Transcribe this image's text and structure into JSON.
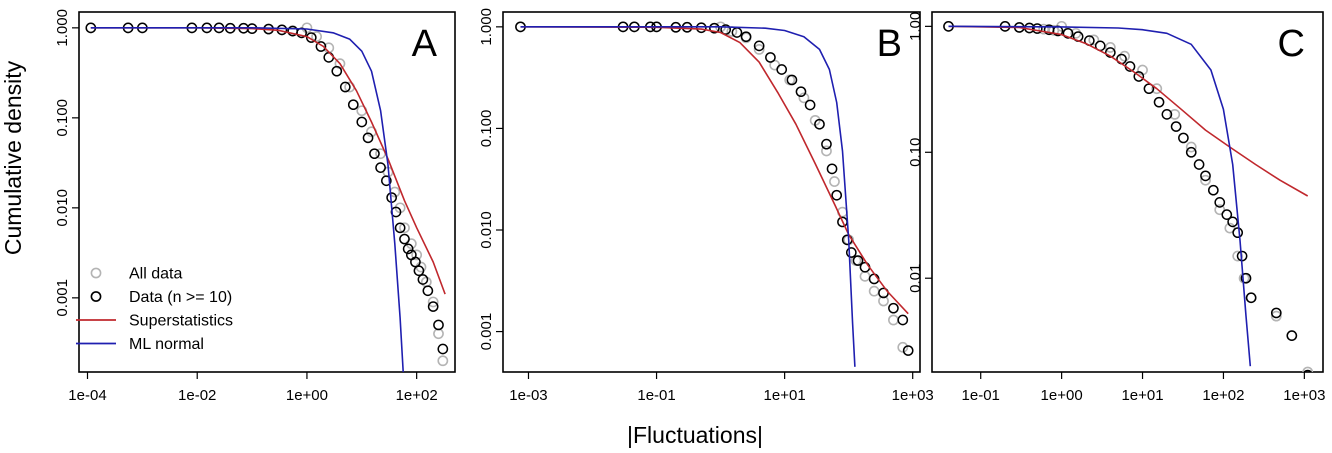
{
  "figure": {
    "xlabel": "|Fluctuations|",
    "ylabel": "Cumulative density"
  },
  "colors": {
    "all_data": "#b4b4b4",
    "data_n10": "#000000",
    "superstatistics": "#c0282d",
    "ml_normal": "#1f1fb0"
  },
  "legend": {
    "placement": "bottom-left (panel A)",
    "items": [
      {
        "label": "All data",
        "type": "marker",
        "color": "#b4b4b4"
      },
      {
        "label": "Data (n >= 10)",
        "type": "marker",
        "color": "#000000"
      },
      {
        "label": "Superstatistics",
        "type": "line",
        "color": "#c0282d"
      },
      {
        "label": "ML normal",
        "type": "line",
        "color": "#1f1fb0"
      }
    ]
  },
  "chart_data": [
    {
      "type": "scatter",
      "panel": "A",
      "xscale": "log",
      "yscale": "log",
      "xlim": [
        7e-05,
        500
      ],
      "ylim": [
        0.00015,
        1.5
      ],
      "x_ticks": [
        0.0001,
        0.01,
        1,
        100
      ],
      "x_tick_labels": [
        "1e-04",
        "1e-02",
        "1e+00",
        "1e+02"
      ],
      "y_ticks": [
        1,
        0.1,
        0.01,
        0.001
      ],
      "y_tick_labels": [
        "1.000",
        "0.100",
        "0.010",
        "0.001"
      ],
      "series": [
        {
          "name": "All data",
          "kind": "points",
          "color": "#b4b4b4",
          "x": [
            0.000115,
            0.00055,
            0.001,
            0.008,
            0.015,
            0.025,
            0.04,
            0.07,
            0.1,
            0.2,
            0.35,
            0.55,
            1.0,
            1.5,
            2.5,
            4,
            6,
            10,
            15,
            22,
            30,
            40,
            50,
            60,
            80,
            100,
            120,
            150,
            200,
            250,
            300
          ],
          "y": [
            1.0,
            1.0,
            1.0,
            1.0,
            1.0,
            1.0,
            0.99,
            0.99,
            0.98,
            0.97,
            0.95,
            0.93,
            1.0,
            0.8,
            0.6,
            0.4,
            0.22,
            0.12,
            0.07,
            0.04,
            0.025,
            0.015,
            0.01,
            0.006,
            0.004,
            0.003,
            0.0022,
            0.0015,
            0.0009,
            0.0004,
            0.0002
          ]
        },
        {
          "name": "Data (n >= 10)",
          "kind": "points",
          "color": "#000000",
          "x": [
            0.000115,
            0.00055,
            0.001,
            0.008,
            0.015,
            0.025,
            0.04,
            0.07,
            0.1,
            0.2,
            0.35,
            0.55,
            0.8,
            1.2,
            1.8,
            2.5,
            3.5,
            5,
            7,
            10,
            13,
            17,
            22,
            28,
            35,
            42,
            50,
            60,
            70,
            80,
            95,
            110,
            130,
            160,
            200,
            250,
            300
          ],
          "y": [
            1.0,
            1.0,
            1.0,
            1.0,
            1.0,
            1.0,
            0.99,
            0.99,
            0.98,
            0.97,
            0.95,
            0.92,
            0.88,
            0.78,
            0.62,
            0.47,
            0.33,
            0.22,
            0.14,
            0.09,
            0.06,
            0.04,
            0.028,
            0.02,
            0.013,
            0.009,
            0.006,
            0.0045,
            0.0035,
            0.003,
            0.0025,
            0.002,
            0.0016,
            0.0012,
            0.0008,
            0.0005,
            0.00027
          ]
        },
        {
          "name": "Superstatistics",
          "kind": "line",
          "color": "#c0282d",
          "x": [
            0.000115,
            0.01,
            0.1,
            0.3,
            1,
            2,
            4,
            8,
            15,
            30,
            60,
            100,
            200,
            330
          ],
          "y": [
            1.0,
            1.0,
            0.98,
            0.94,
            0.8,
            0.62,
            0.4,
            0.2,
            0.09,
            0.035,
            0.012,
            0.006,
            0.0025,
            0.0011
          ]
        },
        {
          "name": "ML normal",
          "kind": "line",
          "color": "#1f1fb0",
          "x": [
            0.000115,
            0.1,
            1,
            3,
            6,
            10,
            15,
            22,
            30,
            40,
            50,
            58
          ],
          "y": [
            1.0,
            1.0,
            0.97,
            0.88,
            0.75,
            0.55,
            0.33,
            0.12,
            0.03,
            0.004,
            0.0006,
            0.00012
          ]
        }
      ]
    },
    {
      "type": "scatter",
      "panel": "B",
      "xscale": "log",
      "yscale": "log",
      "xlim": [
        0.0004,
        1300
      ],
      "ylim": [
        0.0004,
        1.4
      ],
      "x_ticks": [
        0.001,
        0.1,
        10,
        1000
      ],
      "x_tick_labels": [
        "1e-03",
        "1e-01",
        "1e+01",
        "1e+03"
      ],
      "y_ticks": [
        1,
        0.1,
        0.01,
        0.001
      ],
      "y_tick_labels": [
        "1.000",
        "0.100",
        "0.010",
        "0.001"
      ],
      "series": [
        {
          "name": "All data",
          "kind": "points",
          "color": "#b4b4b4",
          "x": [
            0.00075,
            0.03,
            0.045,
            0.08,
            0.1,
            0.2,
            0.3,
            0.5,
            0.8,
            1.0,
            1.5,
            2.5,
            4,
            7,
            12,
            20,
            30,
            45,
            60,
            80,
            100,
            130,
            180,
            250,
            350,
            500,
            700
          ],
          "y": [
            1.0,
            1.0,
            1.0,
            1.0,
            1.0,
            0.99,
            0.99,
            0.98,
            0.97,
            1.0,
            0.9,
            0.78,
            0.6,
            0.42,
            0.3,
            0.2,
            0.12,
            0.06,
            0.03,
            0.015,
            0.008,
            0.005,
            0.0035,
            0.0025,
            0.002,
            0.0013,
            0.0007
          ]
        },
        {
          "name": "Data (n >= 10)",
          "kind": "points",
          "color": "#000000",
          "x": [
            0.00075,
            0.03,
            0.045,
            0.08,
            0.1,
            0.2,
            0.3,
            0.5,
            0.8,
            1.2,
            1.8,
            2.5,
            4,
            6,
            9,
            13,
            18,
            25,
            35,
            45,
            55,
            65,
            80,
            95,
            110,
            140,
            180,
            250,
            350,
            500,
            700,
            850
          ],
          "y": [
            1.0,
            1.0,
            1.0,
            1.0,
            1.0,
            0.99,
            0.99,
            0.98,
            0.97,
            0.94,
            0.88,
            0.8,
            0.65,
            0.5,
            0.38,
            0.3,
            0.23,
            0.17,
            0.11,
            0.07,
            0.04,
            0.022,
            0.012,
            0.008,
            0.006,
            0.005,
            0.0043,
            0.0033,
            0.0024,
            0.0017,
            0.0013,
            0.00065
          ]
        },
        {
          "name": "Superstatistics",
          "kind": "line",
          "color": "#c0282d",
          "x": [
            0.00075,
            0.1,
            0.5,
            1,
            2,
            4,
            8,
            15,
            30,
            60,
            100,
            200,
            400,
            850
          ],
          "y": [
            1.0,
            0.99,
            0.95,
            0.88,
            0.7,
            0.45,
            0.22,
            0.11,
            0.045,
            0.018,
            0.009,
            0.0045,
            0.0025,
            0.0015
          ]
        },
        {
          "name": "ML normal",
          "kind": "line",
          "color": "#1f1fb0",
          "x": [
            0.00075,
            1,
            5,
            10,
            20,
            35,
            50,
            65,
            80,
            100,
            115,
            125
          ],
          "y": [
            1.0,
            1.0,
            0.97,
            0.92,
            0.8,
            0.6,
            0.38,
            0.18,
            0.06,
            0.008,
            0.0012,
            0.00045
          ]
        }
      ]
    },
    {
      "type": "scatter",
      "panel": "C",
      "xscale": "log",
      "yscale": "log",
      "xlim": [
        0.025,
        1700
      ],
      "ylim": [
        0.0018,
        1.3
      ],
      "x_ticks": [
        0.1,
        1,
        10,
        100,
        1000
      ],
      "x_tick_labels": [
        "1e-01",
        "1e+00",
        "1e+01",
        "1e+02",
        "1e+03"
      ],
      "y_ticks": [
        1,
        0.1,
        0.01
      ],
      "y_tick_labels": [
        "1.00",
        "0.10",
        "0.01"
      ],
      "series": [
        {
          "name": "All data",
          "kind": "points",
          "color": "#b4b4b4",
          "x": [
            0.04,
            0.2,
            0.3,
            0.4,
            0.6,
            0.8,
            1.0,
            1.5,
            2.5,
            4,
            6,
            10,
            15,
            25,
            40,
            60,
            90,
            120,
            150,
            180,
            220,
            450,
            700,
            1100
          ],
          "y": [
            1.0,
            1.0,
            0.98,
            0.97,
            0.95,
            0.93,
            1.0,
            0.88,
            0.78,
            0.68,
            0.58,
            0.45,
            0.32,
            0.2,
            0.11,
            0.06,
            0.035,
            0.025,
            0.015,
            0.01,
            0.007,
            0.005,
            0.0035,
            0.0018
          ]
        },
        {
          "name": "Data (n >= 10)",
          "kind": "points",
          "color": "#000000",
          "x": [
            0.04,
            0.2,
            0.3,
            0.4,
            0.5,
            0.7,
            0.9,
            1.2,
            1.6,
            2.2,
            3,
            4,
            5.5,
            7,
            9,
            12,
            16,
            20,
            26,
            32,
            40,
            50,
            60,
            75,
            90,
            110,
            130,
            150,
            170,
            190,
            220,
            450,
            700,
            1100
          ],
          "y": [
            1.0,
            1.0,
            0.98,
            0.97,
            0.96,
            0.94,
            0.92,
            0.88,
            0.83,
            0.77,
            0.7,
            0.62,
            0.55,
            0.48,
            0.4,
            0.32,
            0.25,
            0.2,
            0.16,
            0.13,
            0.1,
            0.08,
            0.065,
            0.05,
            0.04,
            0.032,
            0.028,
            0.023,
            0.015,
            0.01,
            0.007,
            0.0053,
            0.0035,
            0.0017
          ]
        },
        {
          "name": "Superstatistics",
          "kind": "line",
          "color": "#c0282d",
          "x": [
            0.04,
            0.3,
            1,
            2,
            4,
            8,
            15,
            30,
            60,
            120,
            250,
            500,
            1100
          ],
          "y": [
            1.0,
            0.98,
            0.86,
            0.73,
            0.58,
            0.43,
            0.32,
            0.22,
            0.15,
            0.11,
            0.08,
            0.06,
            0.045
          ]
        },
        {
          "name": "ML normal",
          "kind": "line",
          "color": "#1f1fb0",
          "x": [
            0.04,
            1,
            5,
            10,
            20,
            40,
            70,
            100,
            130,
            160,
            190,
            215
          ],
          "y": [
            1.0,
            0.99,
            0.97,
            0.94,
            0.88,
            0.72,
            0.45,
            0.22,
            0.08,
            0.02,
            0.005,
            0.002
          ]
        }
      ]
    }
  ]
}
